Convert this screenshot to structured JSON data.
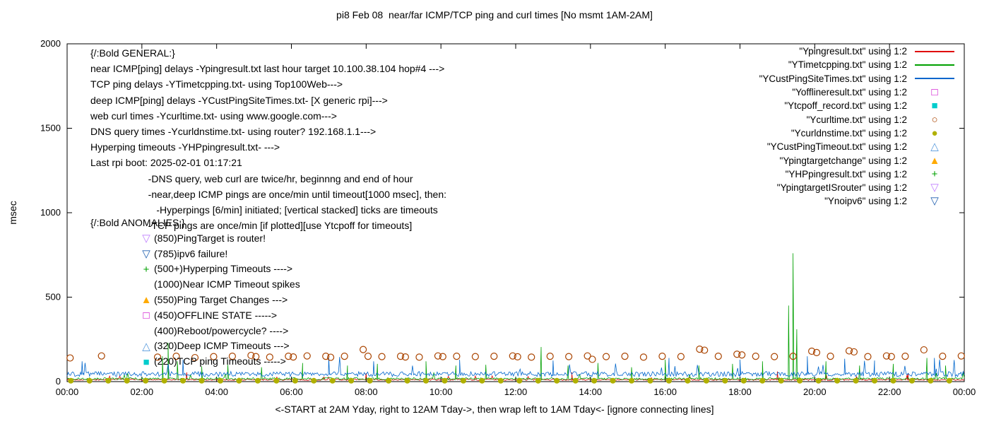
{
  "chart_data": {
    "type": "line",
    "title": "pi8 Feb 08  near/far ICMP/TCP ping and curl times [No msmt 1AM-2AM]",
    "ylabel": "msec",
    "xlabel": "<-START at 2AM Yday, right to 12AM Tday->, then wrap left to 1AM Tday<- [ignore connecting lines]",
    "ylim": [
      0,
      2000
    ],
    "xlim_hours": [
      0,
      24
    ],
    "y_ticks": [
      0,
      500,
      1000,
      1500,
      2000
    ],
    "x_tick_hours": [
      0,
      2,
      4,
      6,
      8,
      10,
      12,
      14,
      16,
      18,
      20,
      22,
      24
    ],
    "x_tick_labels": [
      "00:00",
      "02:00",
      "04:00",
      "06:00",
      "08:00",
      "10:00",
      "12:00",
      "14:00",
      "16:00",
      "18:00",
      "20:00",
      "22:00",
      "00:00"
    ],
    "grid": false,
    "legend_position": "top-right",
    "seed": 7,
    "line_series": [
      {
        "name": "Ypingresult.txt",
        "color": "#e00000",
        "base": 10,
        "amp": 9,
        "spikes": [
          [
            3.2,
            55
          ],
          [
            8.0,
            50
          ],
          [
            13.5,
            55
          ],
          [
            19.0,
            60
          ],
          [
            22.5,
            50
          ]
        ]
      },
      {
        "name": "YTimetcpping.txt",
        "color": "#00a000",
        "base": 15,
        "amp": 13,
        "spikes": [
          [
            2.55,
            150
          ],
          [
            2.7,
            230
          ],
          [
            2.95,
            120
          ],
          [
            3.6,
            90
          ],
          [
            4.3,
            100
          ],
          [
            5.2,
            85
          ],
          [
            6.3,
            110
          ],
          [
            7.5,
            95
          ],
          [
            8.3,
            105
          ],
          [
            9.6,
            120
          ],
          [
            10.4,
            95
          ],
          [
            11.2,
            100
          ],
          [
            12.68,
            205
          ],
          [
            13.4,
            95
          ],
          [
            14.2,
            110
          ],
          [
            15.1,
            85
          ],
          [
            16.0,
            130
          ],
          [
            16.9,
            95
          ],
          [
            17.8,
            105
          ],
          [
            18.6,
            120
          ],
          [
            19.3,
            450
          ],
          [
            19.42,
            760
          ],
          [
            19.52,
            310
          ],
          [
            20.3,
            120
          ],
          [
            21.2,
            95
          ],
          [
            22.1,
            105
          ],
          [
            23.0,
            140
          ],
          [
            23.5,
            95
          ]
        ]
      },
      {
        "name": "YCustPingSiteTimes.txt",
        "color": "#0066cc",
        "base": 40,
        "amp": 30,
        "spikes": [
          [
            0.4,
            120
          ],
          [
            3.1,
            130
          ],
          [
            7.0,
            140
          ],
          [
            8.2,
            120
          ],
          [
            10.5,
            130
          ],
          [
            13.0,
            125
          ],
          [
            16.1,
            140
          ],
          [
            18.0,
            130
          ],
          [
            19.8,
            150
          ],
          [
            20.8,
            135
          ],
          [
            21.6,
            125
          ],
          [
            23.2,
            140
          ]
        ]
      }
    ],
    "scatter_series": [
      {
        "name": "Ycurltime.txt",
        "marker": "open-circle",
        "color": "#aa4400",
        "points": [
          [
            0.08,
            140
          ],
          [
            0.92,
            152
          ],
          [
            2.42,
            145
          ],
          [
            2.92,
            150
          ],
          [
            3.42,
            142
          ],
          [
            3.92,
            148
          ],
          [
            4.42,
            150
          ],
          [
            4.92,
            155
          ],
          [
            5.05,
            148
          ],
          [
            5.42,
            145
          ],
          [
            5.92,
            150
          ],
          [
            6.05,
            146
          ],
          [
            6.42,
            152
          ],
          [
            6.92,
            150
          ],
          [
            7.05,
            144
          ],
          [
            7.42,
            150
          ],
          [
            7.92,
            190
          ],
          [
            8.05,
            150
          ],
          [
            8.42,
            148
          ],
          [
            8.92,
            150
          ],
          [
            9.05,
            146
          ],
          [
            9.42,
            145
          ],
          [
            9.92,
            152
          ],
          [
            10.05,
            148
          ],
          [
            10.42,
            150
          ],
          [
            10.92,
            148
          ],
          [
            11.42,
            150
          ],
          [
            11.92,
            152
          ],
          [
            12.05,
            147
          ],
          [
            12.42,
            145
          ],
          [
            12.92,
            150
          ],
          [
            13.42,
            148
          ],
          [
            13.92,
            152
          ],
          [
            14.05,
            132
          ],
          [
            14.42,
            148
          ],
          [
            14.92,
            150
          ],
          [
            15.42,
            145
          ],
          [
            15.92,
            150
          ],
          [
            16.42,
            148
          ],
          [
            16.92,
            192
          ],
          [
            17.05,
            186
          ],
          [
            17.42,
            150
          ],
          [
            17.92,
            162
          ],
          [
            18.05,
            158
          ],
          [
            18.42,
            150
          ],
          [
            18.92,
            148
          ],
          [
            19.42,
            150
          ],
          [
            19.92,
            180
          ],
          [
            20.05,
            172
          ],
          [
            20.42,
            150
          ],
          [
            20.92,
            182
          ],
          [
            21.05,
            176
          ],
          [
            21.42,
            148
          ],
          [
            21.92,
            152
          ],
          [
            22.05,
            148
          ],
          [
            22.42,
            150
          ],
          [
            22.92,
            188
          ],
          [
            23.42,
            150
          ],
          [
            23.92,
            152
          ]
        ]
      },
      {
        "name": "Ycurldnstime.txt",
        "marker": "filled-circle",
        "color": "#b0b000",
        "pattern": {
          "x_start": 0.1,
          "x_step": 0.5,
          "count": 48,
          "y": 5
        }
      }
    ],
    "legend": [
      {
        "label": "\"Ypingresult.txt\" using 1:2",
        "type": "line",
        "color": "#e00000"
      },
      {
        "label": "\"YTimetcpping.txt\" using 1:2",
        "type": "line",
        "color": "#00a000"
      },
      {
        "label": "\"YCustPingSiteTimes.txt\" using 1:2",
        "type": "line",
        "color": "#0066cc"
      },
      {
        "label": "\"Yofflineresult.txt\" using 1:2",
        "type": "marker",
        "marker": "open-square",
        "color": "#cc00cc"
      },
      {
        "label": "\"Ytcpoff_record.txt\" using 1:2",
        "type": "marker",
        "marker": "filled-square",
        "color": "#00cccc"
      },
      {
        "label": "\"Ycurltime.txt\" using 1:2",
        "type": "marker",
        "marker": "open-circle",
        "color": "#aa4400"
      },
      {
        "label": "\"Ycurldnstime.txt\" using 1:2",
        "type": "marker",
        "marker": "filled-circle",
        "color": "#b0b000"
      },
      {
        "label": "\"YCustPingTimeout.txt\" using 1:2",
        "type": "marker",
        "marker": "open-triangle-up",
        "color": "#5599dd"
      },
      {
        "label": "\"Ypingtargetchange\" using 1:2",
        "type": "marker",
        "marker": "filled-triangle-up",
        "color": "#ffaa00"
      },
      {
        "label": "\"YHPpingresult.txt\" using 1:2",
        "type": "marker",
        "marker": "plus",
        "color": "#00a000"
      },
      {
        "label": "\"YpingtargetISrouter\" using 1:2",
        "type": "marker",
        "marker": "open-triangle-down",
        "color": "#c080ff"
      },
      {
        "label": "\"Ynoipv6\" using 1:2",
        "type": "marker",
        "marker": "open-triangle-down",
        "color": "#2060b0"
      }
    ],
    "annotations": {
      "general": [
        "{/:Bold GENERAL:}",
        "near ICMP[ping] delays -Ypingresult.txt last hour target 10.100.38.104 hop#4 --->",
        "TCP ping delays -YTimetcpping.txt- using Top100Web--->",
        "deep ICMP[ping] delays -YCustPingSiteTimes.txt- [X generic rpi]--->",
        "web curl times -Ycurltime.txt- using www.google.com--->",
        "DNS query times -Ycurldnstime.txt- using router? 192.168.1.1--->",
        "Hyperping timeouts -YHPpingresult.txt- --->",
        "Last rpi boot: 2025-02-01 01:17:21",
        "                     -DNS query, web curl are twice/hr, beginnng and end of hour",
        "                     -near,deep ICMP pings are once/min until timeout[1000 msec], then:",
        "                        -Hyperpings [6/min] initiated; [vertical stacked] ticks are timeouts",
        "                     -TCP pings are once/min [if plotted][use Ytcpoff for timeouts]"
      ],
      "anomalies_header": "{/:Bold ANOMALIES:}",
      "anomalies": [
        {
          "marker": "open-triangle-down",
          "color": "#c080ff",
          "text": "(850)PingTarget is router!"
        },
        {
          "marker": "open-triangle-down",
          "color": "#2060b0",
          "text": "(785)ipv6 failure!"
        },
        {
          "marker": "plus",
          "color": "#00a000",
          "text": "(500+)Hyperping Timeouts ---->"
        },
        {
          "marker": "",
          "color": "",
          "text": "(1000)Near ICMP Timeout spikes"
        },
        {
          "marker": "filled-triangle-up",
          "color": "#ffaa00",
          "text": "(550)Ping Target Changes --->"
        },
        {
          "marker": "open-square",
          "color": "#cc00cc",
          "text": "(450)OFFLINE STATE ----->"
        },
        {
          "marker": "",
          "color": "",
          "text": "(400)Reboot/powercycle? ---->"
        },
        {
          "marker": "open-triangle-up",
          "color": "#5599dd",
          "text": "(320)Deep ICMP Timeouts --->"
        },
        {
          "marker": "filled-square",
          "color": "#00cccc",
          "text": "(220)TCP ping Timeouts ----->"
        }
      ]
    }
  }
}
